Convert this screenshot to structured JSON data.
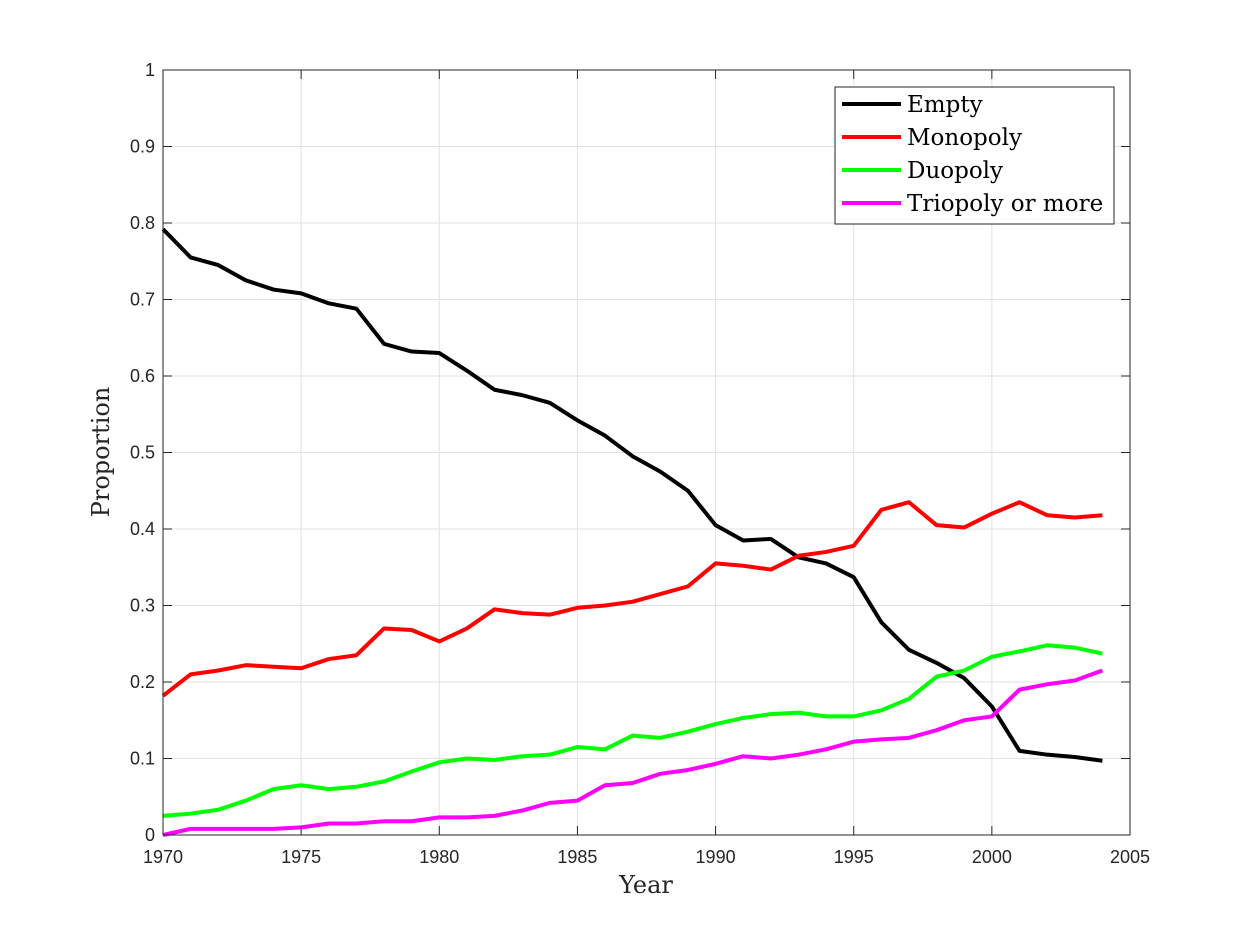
{
  "chart_data": {
    "type": "line",
    "title": "",
    "xlabel": "Year",
    "ylabel": "Proportion",
    "xlim": [
      1970,
      2005
    ],
    "ylim": [
      0,
      1
    ],
    "grid": true,
    "legend_position": "top-right",
    "x_ticks": [
      "1970",
      "1975",
      "1980",
      "1985",
      "1990",
      "1995",
      "2000",
      "2005"
    ],
    "y_ticks": [
      "0",
      "0.1",
      "0.2",
      "0.3",
      "0.4",
      "0.5",
      "0.6",
      "0.7",
      "0.8",
      "0.9",
      "1"
    ],
    "x": [
      1970,
      1971,
      1972,
      1973,
      1974,
      1975,
      1976,
      1977,
      1978,
      1979,
      1980,
      1981,
      1982,
      1983,
      1984,
      1985,
      1986,
      1987,
      1988,
      1989,
      1990,
      1991,
      1992,
      1993,
      1994,
      1995,
      1996,
      1997,
      1998,
      1999,
      2000,
      2001,
      2002,
      2003,
      2004
    ],
    "series": [
      {
        "name": "Empty",
        "color": "#000000",
        "values": [
          0.792,
          0.755,
          0.745,
          0.725,
          0.713,
          0.708,
          0.695,
          0.688,
          0.642,
          0.632,
          0.63,
          0.607,
          0.582,
          0.575,
          0.565,
          0.542,
          0.522,
          0.495,
          0.475,
          0.45,
          0.405,
          0.385,
          0.387,
          0.363,
          0.355,
          0.337,
          0.278,
          0.242,
          0.225,
          0.205,
          0.168,
          0.11,
          0.105,
          0.102,
          0.097
        ]
      },
      {
        "name": "Monopoly",
        "color": "#ff0000",
        "values": [
          0.182,
          0.21,
          0.215,
          0.222,
          0.22,
          0.218,
          0.23,
          0.235,
          0.27,
          0.268,
          0.253,
          0.27,
          0.295,
          0.29,
          0.288,
          0.297,
          0.3,
          0.305,
          0.315,
          0.325,
          0.355,
          0.352,
          0.347,
          0.365,
          0.37,
          0.378,
          0.425,
          0.435,
          0.405,
          0.402,
          0.42,
          0.435,
          0.418,
          0.415,
          0.418
        ]
      },
      {
        "name": "Duopoly",
        "color": "#00ff00",
        "values": [
          0.025,
          0.028,
          0.033,
          0.045,
          0.06,
          0.065,
          0.06,
          0.063,
          0.07,
          0.083,
          0.095,
          0.1,
          0.098,
          0.103,
          0.105,
          0.115,
          0.112,
          0.13,
          0.127,
          0.135,
          0.145,
          0.153,
          0.158,
          0.16,
          0.155,
          0.155,
          0.163,
          0.178,
          0.207,
          0.215,
          0.233,
          0.24,
          0.248,
          0.245,
          0.237
        ]
      },
      {
        "name": "Triopoly or more",
        "color": "#ff00ff",
        "values": [
          0.0,
          0.008,
          0.008,
          0.008,
          0.008,
          0.01,
          0.015,
          0.015,
          0.018,
          0.018,
          0.023,
          0.023,
          0.025,
          0.032,
          0.042,
          0.045,
          0.065,
          0.068,
          0.08,
          0.085,
          0.093,
          0.103,
          0.1,
          0.105,
          0.112,
          0.122,
          0.125,
          0.127,
          0.137,
          0.15,
          0.155,
          0.19,
          0.197,
          0.202,
          0.215
        ]
      }
    ]
  }
}
